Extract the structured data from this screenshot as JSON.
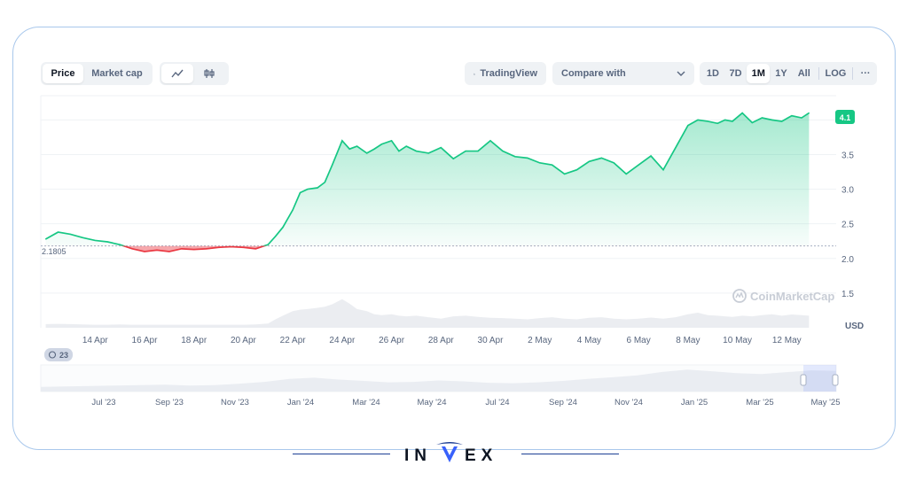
{
  "toolbar": {
    "tabs": [
      "Price",
      "Market cap"
    ],
    "active_tab": "Price",
    "chart_icons": [
      "line-chart-icon",
      "candlestick-icon"
    ],
    "tradingview_label": "TradingView",
    "compare_label": "Compare with",
    "ranges": [
      "1D",
      "7D",
      "1M",
      "1Y",
      "All"
    ],
    "active_range": "1M",
    "log_label": "LOG",
    "more_label": "···"
  },
  "colors": {
    "up": "#16c784",
    "down": "#ea3943",
    "accent_blue": "#3861fb",
    "brand_blue": "#1d3f94"
  },
  "chart_data": {
    "type": "area",
    "currency": "USD",
    "baseline": 2.1805,
    "baseline_label": "2.1805",
    "current_value_label": "4.1",
    "watermark": "CoinMarketCap",
    "ylim": [
      1.0,
      4.35
    ],
    "yticks": [
      1.5,
      2.0,
      2.5,
      3.0,
      3.5,
      4.0
    ],
    "ytick_labels": [
      "1.5",
      "2.0",
      "2.5",
      "3.0",
      "3.5",
      "4.0"
    ],
    "x_day_range": [
      -1.2,
      31.0
    ],
    "xtick_days": [
      1,
      3,
      5,
      7,
      9,
      11,
      13,
      15,
      17,
      19,
      21,
      23,
      25,
      27,
      29
    ],
    "xtick_labels": [
      "14 Apr",
      "16 Apr",
      "18 Apr",
      "20 Apr",
      "22 Apr",
      "24 Apr",
      "26 Apr",
      "28 Apr",
      "30 Apr",
      "2 May",
      "4 May",
      "6 May",
      "8 May",
      "10 May",
      "12 May"
    ],
    "series": [
      {
        "x_day": [
          -1.0,
          -0.5,
          0.0,
          0.5,
          1.0,
          1.5,
          2.0,
          2.5,
          3.0,
          3.5,
          4.0,
          4.5,
          5.0,
          5.5,
          6.0,
          6.5,
          7.0,
          7.5,
          8.0,
          8.3,
          8.6,
          9.0,
          9.3,
          9.6,
          10.0,
          10.3,
          10.6,
          11.0,
          11.3,
          11.6,
          12.0,
          12.3,
          12.6,
          13.0,
          13.3,
          13.6,
          14.0,
          14.5,
          15.0,
          15.5,
          16.0,
          16.5,
          17.0,
          17.5,
          18.0,
          18.5,
          19.0,
          19.5,
          20.0,
          20.5,
          21.0,
          21.5,
          22.0,
          22.5,
          23.0,
          23.5,
          24.0,
          24.5,
          25.0,
          25.4,
          25.8,
          26.2,
          26.5,
          26.8,
          27.2,
          27.6,
          28.0,
          28.4,
          28.8,
          29.2,
          29.6,
          29.9
        ],
        "y": [
          2.28,
          2.38,
          2.35,
          2.3,
          2.26,
          2.24,
          2.2,
          2.14,
          2.1,
          2.12,
          2.1,
          2.14,
          2.13,
          2.14,
          2.16,
          2.17,
          2.16,
          2.14,
          2.2,
          2.32,
          2.45,
          2.7,
          2.95,
          3.0,
          3.02,
          3.1,
          3.35,
          3.7,
          3.58,
          3.62,
          3.52,
          3.58,
          3.65,
          3.7,
          3.55,
          3.62,
          3.55,
          3.52,
          3.6,
          3.44,
          3.55,
          3.55,
          3.7,
          3.55,
          3.47,
          3.45,
          3.38,
          3.35,
          3.22,
          3.28,
          3.4,
          3.45,
          3.38,
          3.22,
          3.35,
          3.48,
          3.28,
          3.6,
          3.92,
          4.0,
          3.98,
          3.95,
          4.0,
          3.98,
          4.1,
          3.96,
          4.03,
          4.0,
          3.98,
          4.06,
          4.03,
          4.1
        ]
      }
    ],
    "volume": [
      0.12,
      0.13,
      0.12,
      0.11,
      0.1,
      0.1,
      0.11,
      0.1,
      0.1,
      0.1,
      0.1,
      0.1,
      0.1,
      0.1,
      0.1,
      0.1,
      0.1,
      0.11,
      0.14,
      0.28,
      0.4,
      0.55,
      0.6,
      0.62,
      0.66,
      0.7,
      0.78,
      0.95,
      0.8,
      0.62,
      0.55,
      0.45,
      0.42,
      0.45,
      0.4,
      0.38,
      0.4,
      0.35,
      0.3,
      0.38,
      0.4,
      0.36,
      0.33,
      0.32,
      0.3,
      0.28,
      0.32,
      0.35,
      0.3,
      0.28,
      0.33,
      0.35,
      0.3,
      0.28,
      0.3,
      0.34,
      0.3,
      0.35,
      0.45,
      0.5,
      0.42,
      0.4,
      0.38,
      0.36,
      0.4,
      0.38,
      0.42,
      0.45,
      0.4,
      0.44,
      0.42,
      0.4
    ],
    "navigator": {
      "badge_label": "23",
      "xtick_labels": [
        "Jul '23",
        "Sep '23",
        "Nov '23",
        "Jan '24",
        "Mar '24",
        "May '24",
        "Jul '24",
        "Sep '24",
        "Nov '24",
        "Jan '25",
        "Mar '25",
        "May '25"
      ],
      "profile": [
        0.2,
        0.22,
        0.24,
        0.26,
        0.28,
        0.3,
        0.26,
        0.28,
        0.34,
        0.42,
        0.55,
        0.6,
        0.52,
        0.46,
        0.4,
        0.42,
        0.48,
        0.44,
        0.38,
        0.36,
        0.4,
        0.46,
        0.55,
        0.62,
        0.7,
        0.85,
        0.95,
        0.88,
        0.8,
        0.76,
        0.84,
        0.92,
        0.9
      ]
    }
  },
  "brand": {
    "logo_text_left": "IN",
    "logo_text_right": "EX"
  }
}
